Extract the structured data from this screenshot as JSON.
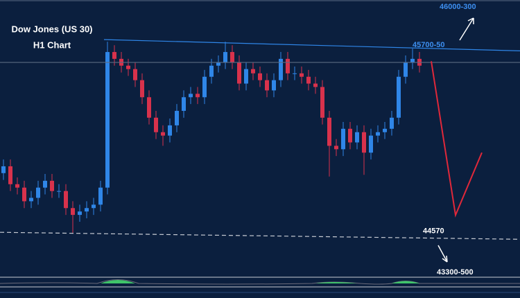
{
  "chart_data": {
    "type": "candlestick",
    "title": "Dow Jones (US 30)",
    "subtitle": "H1 Chart",
    "up_color": "#2f86e8",
    "down_color": "#d8324c",
    "xlim": [
      0,
      75
    ],
    "ylim": [
      44360,
      45965
    ],
    "open": [
      44950,
      44990,
      44885,
      44865,
      44785,
      44805,
      44865,
      44905,
      44845,
      44845,
      44745,
      44705,
      44725,
      44745,
      44765,
      44865,
      45660,
      45620,
      45580,
      45560,
      45495,
      45395,
      45275,
      45190,
      45170,
      45230,
      45315,
      45395,
      45415,
      45395,
      45515,
      45580,
      45600,
      45660,
      45600,
      45475,
      45560,
      45535,
      45495,
      45435,
      45495,
      45620,
      45535,
      45535,
      45515,
      45475,
      45455,
      45275,
      45110,
      45090,
      45210,
      45130,
      45190,
      45070,
      45170,
      45190,
      45210,
      45275,
      45515,
      45600,
      45620
    ],
    "high": [
      45030,
      45030,
      44925,
      44905,
      44845,
      44905,
      44945,
      44945,
      44885,
      44885,
      44785,
      44765,
      44785,
      44805,
      44905,
      45720,
      45700,
      45660,
      45620,
      45600,
      45535,
      45435,
      45315,
      45230,
      45270,
      45355,
      45435,
      45455,
      45455,
      45555,
      45620,
      45640,
      45720,
      45700,
      45640,
      45600,
      45600,
      45575,
      45535,
      45535,
      45660,
      45660,
      45575,
      45575,
      45555,
      45515,
      45495,
      45315,
      45150,
      45250,
      45250,
      45230,
      45230,
      45210,
      45230,
      45250,
      45315,
      45555,
      45640,
      45680,
      45660
    ],
    "low": [
      44910,
      44845,
      44825,
      44745,
      44745,
      44765,
      44825,
      44805,
      44805,
      44705,
      44600,
      44665,
      44685,
      44705,
      44725,
      44825,
      45580,
      45540,
      45520,
      45455,
      45355,
      45235,
      45150,
      45110,
      45130,
      45190,
      45275,
      45355,
      45355,
      45355,
      45475,
      45540,
      45560,
      45560,
      45435,
      45435,
      45495,
      45455,
      45395,
      45395,
      45455,
      45495,
      45495,
      45475,
      45435,
      45415,
      45235,
      44930,
      45050,
      45050,
      45090,
      45090,
      44940,
      45030,
      45130,
      45150,
      45170,
      45235,
      45475,
      45560,
      45540
    ],
    "close": [
      44990,
      44885,
      44865,
      44785,
      44805,
      44865,
      44905,
      44845,
      44845,
      44745,
      44705,
      44725,
      44745,
      44765,
      44865,
      45660,
      45620,
      45580,
      45560,
      45495,
      45395,
      45275,
      45190,
      45170,
      45230,
      45315,
      45395,
      45415,
      45395,
      45515,
      45580,
      45600,
      45660,
      45600,
      45475,
      45560,
      45535,
      45495,
      45435,
      45495,
      45620,
      45535,
      45535,
      45515,
      45475,
      45455,
      45275,
      45110,
      45090,
      45210,
      45130,
      45190,
      45070,
      45170,
      45190,
      45210,
      45275,
      45515,
      45600,
      45620,
      45580
    ],
    "lines": [
      {
        "name": "trendline",
        "color": "#2f86e8",
        "x": [
          15,
          75
        ],
        "y": [
          45733,
          45667
        ]
      },
      {
        "name": "support",
        "color": "#c8ccd4",
        "dashed": true,
        "x": [
          0,
          75
        ],
        "y": [
          44603,
          44562
        ]
      },
      {
        "name": "level",
        "color": "#5a6a82",
        "x": [
          0,
          75
        ],
        "y": [
          45599,
          45599
        ]
      },
      {
        "name": "projection",
        "color": "#e0283a",
        "x": [
          62.2,
          65.7,
          69.5
        ],
        "y": [
          45606,
          44704,
          45070
        ]
      }
    ],
    "annotations": [
      {
        "text": "46000-300",
        "color": "#3d8ff0",
        "x": 63.4,
        "y": 45924
      },
      {
        "text": "45700-50",
        "color": "#3d8ff0",
        "x": 59.5,
        "y": 45700
      },
      {
        "text": "44570",
        "color": "#ffffff",
        "x": 61,
        "y": 44610
      },
      {
        "text": "43300-500",
        "color": "#ffffff",
        "x": 63,
        "y": 44367
      }
    ]
  }
}
